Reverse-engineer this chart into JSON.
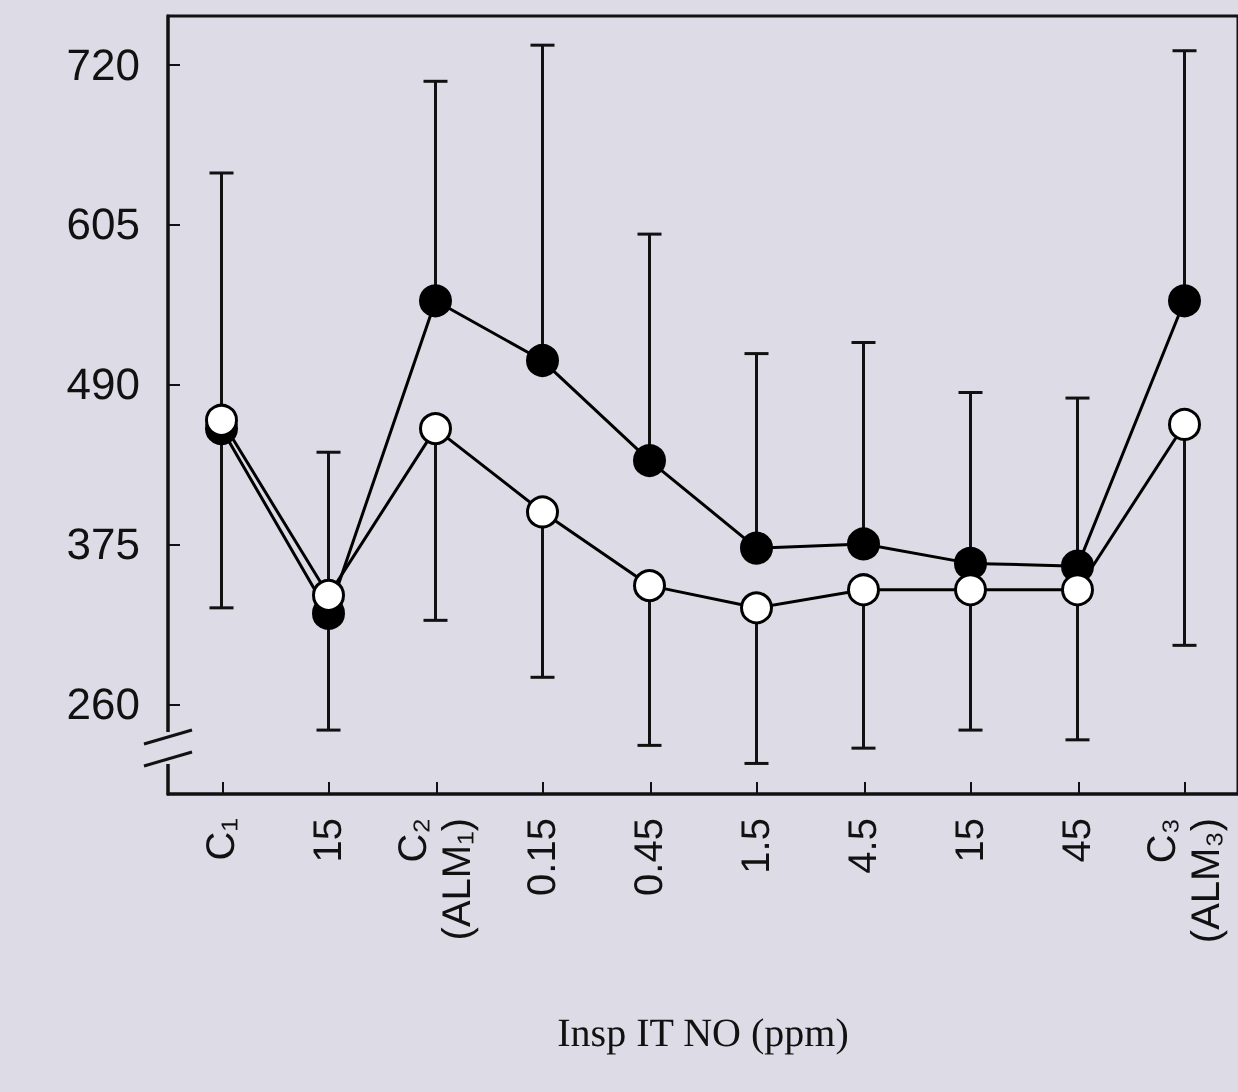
{
  "chart_data": {
    "type": "line",
    "xlabel": "Insp IT NO (ppm)",
    "categories": [
      "C₁",
      "15",
      "C₂\n(ALM₁)",
      "0.15",
      "0.45",
      "1.5",
      "4.5",
      "15",
      "45",
      "C₃\n(ALM₃)"
    ],
    "series": [
      {
        "color": "#000000",
        "values": [
          458,
          325,
          550,
          507,
          435,
          372,
          375,
          361,
          359,
          550
        ],
        "errors": [
          [
            458,
            642
          ],
          [
            325,
            441
          ],
          [
            550,
            708
          ],
          [
            507,
            734
          ],
          [
            435,
            598
          ],
          [
            372,
            512
          ],
          [
            375,
            520
          ],
          [
            361,
            484
          ],
          [
            359,
            480
          ],
          [
            550,
            730
          ]
        ]
      },
      {
        "color": "#ffffff",
        "values": [
          464,
          338,
          458,
          398,
          345,
          329,
          342,
          342,
          342,
          461
        ],
        "errors": [
          [
            329,
            464
          ],
          [
            241,
            338
          ],
          [
            320,
            458
          ],
          [
            279,
            398
          ],
          [
            230,
            345
          ],
          [
            217,
            329
          ],
          [
            228,
            342
          ],
          [
            241,
            342
          ],
          [
            234,
            342
          ],
          [
            302,
            461
          ]
        ]
      }
    ],
    "ylim": [
      195,
      755
    ],
    "yticks": [
      260,
      375,
      490,
      605,
      720
    ],
    "grid": false,
    "marker": "circle",
    "line_style": "solid"
  }
}
